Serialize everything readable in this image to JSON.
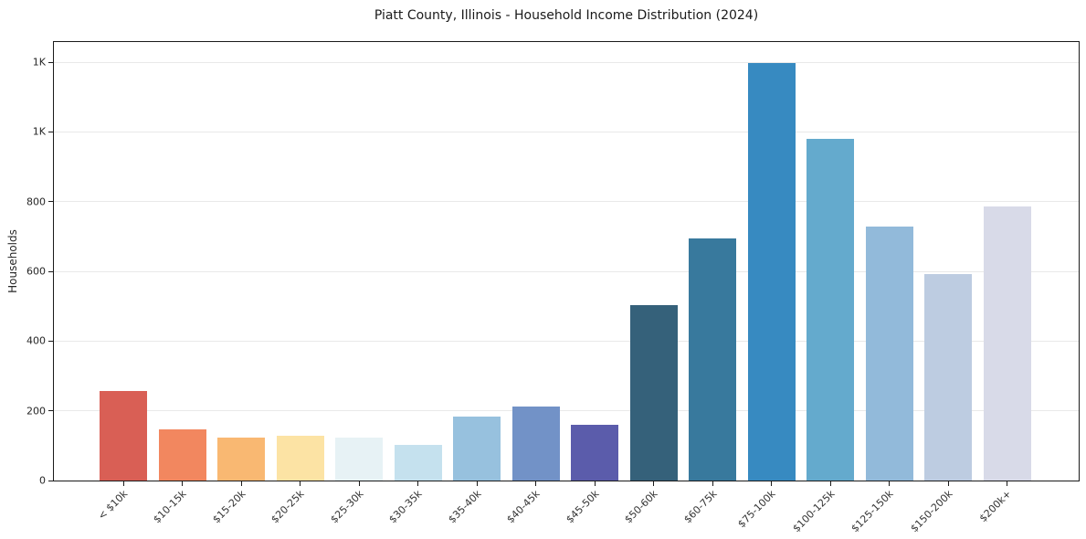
{
  "chart_data": {
    "type": "bar",
    "title": "Piatt County, Illinois - Household Income Distribution (2024)",
    "xlabel": "",
    "ylabel": "Households",
    "categories": [
      "< $10k",
      "$10-15k",
      "$15-20k",
      "$20-25k",
      "$25-30k",
      "$30-35k",
      "$35-40k",
      "$40-45k",
      "$45-50k",
      "$50-60k",
      "$60-75k",
      "$75-100k",
      "$100-125k",
      "$125-150k",
      "$150-200k",
      "$200k+"
    ],
    "values": [
      257,
      146,
      124,
      128,
      124,
      101,
      184,
      211,
      161,
      503,
      695,
      1198,
      980,
      729,
      593,
      786
    ],
    "bar_colors": [
      "#d95f55",
      "#f2875f",
      "#f9b872",
      "#fce3a4",
      "#e7f2f5",
      "#c5e1ee",
      "#97c1de",
      "#7292c7",
      "#5b5cab",
      "#35617a",
      "#38799d",
      "#378ac1",
      "#64aacd",
      "#92bada",
      "#bdcce1",
      "#d8dae8"
    ],
    "ylim": [
      0,
      1258
    ],
    "yticks": [
      0,
      200,
      400,
      600,
      800,
      1000,
      1200
    ],
    "ytick_labels": [
      "0",
      "200",
      "400",
      "600",
      "800",
      "1K",
      "1K"
    ],
    "xtick_rotation_deg": 45,
    "grid": "horizontal-only",
    "legend": "none",
    "plot_background": "#ffffff",
    "gridline_color": "#e9e9e9",
    "spine_color": "#1a1a1a"
  }
}
